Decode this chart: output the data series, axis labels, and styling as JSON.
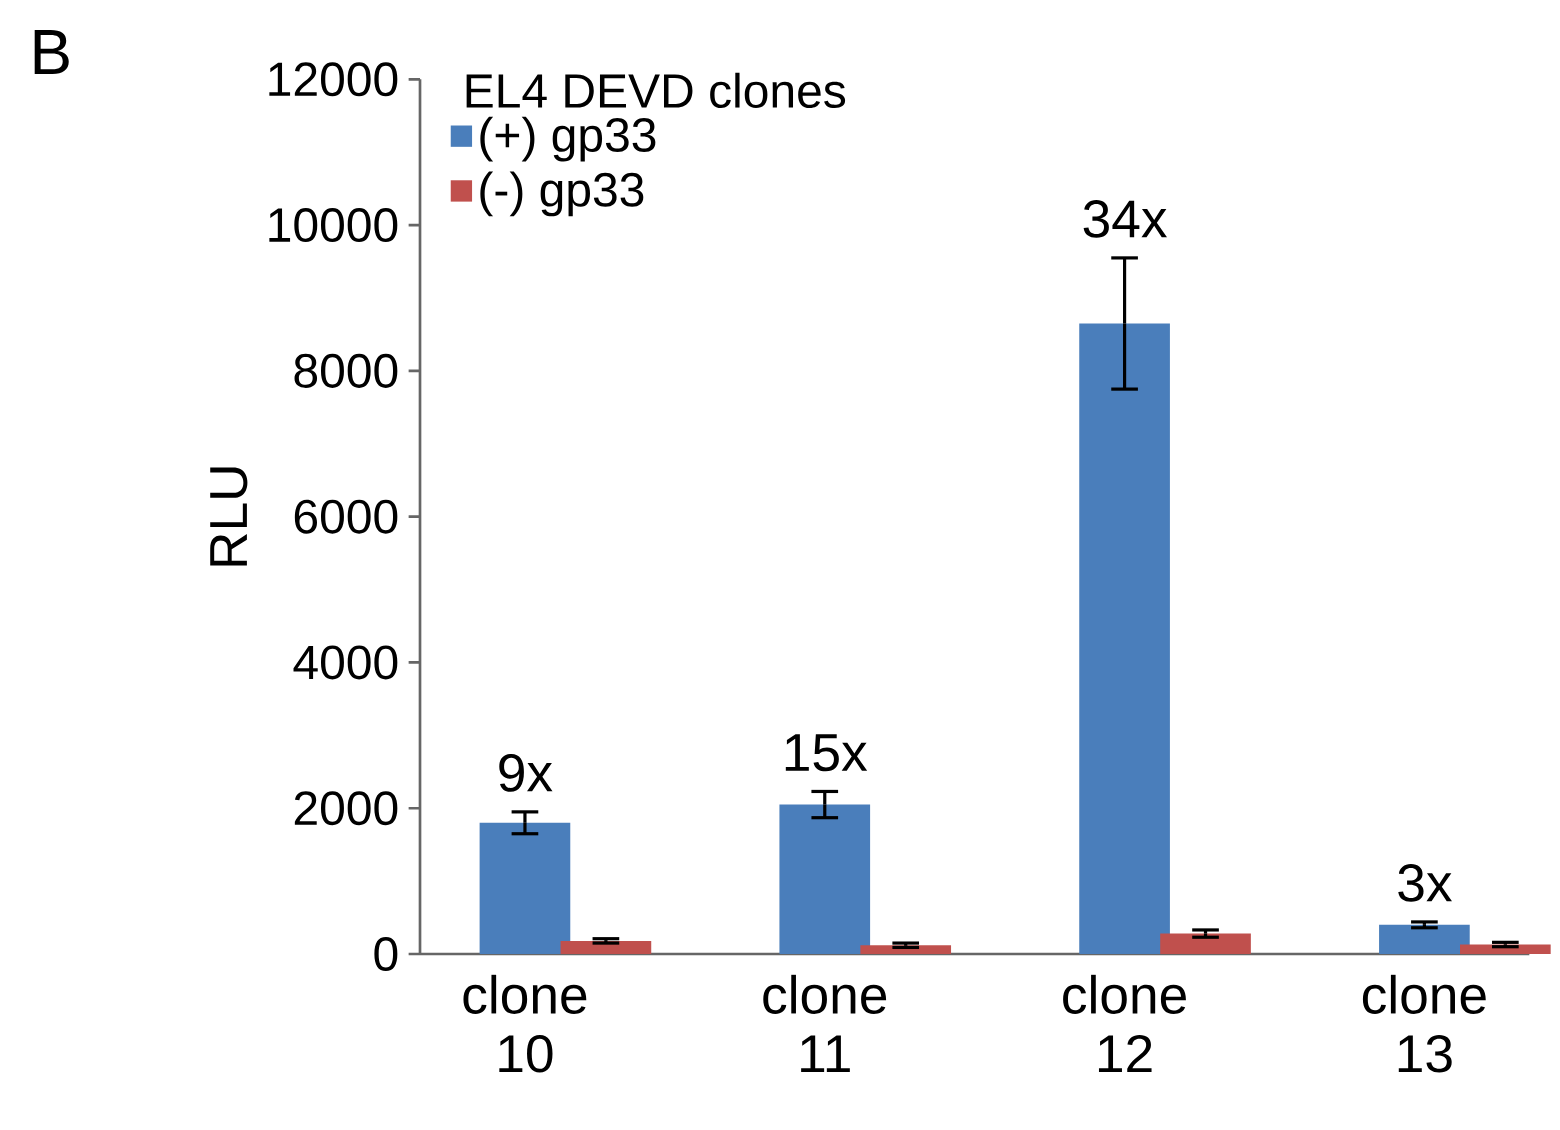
{
  "chart_data": {
    "type": "bar",
    "title": "EL4 DEVD clones",
    "ylabel": "RLU",
    "categories": [
      "clone 10",
      "clone 11",
      "clone 12",
      "clone 13"
    ],
    "series": [
      {
        "name": "(+) gp33",
        "color": "#4a7ebb",
        "values": [
          1800,
          2050,
          8650,
          400
        ],
        "errors": [
          150,
          180,
          900,
          40
        ]
      },
      {
        "name": "(-) gp33",
        "color": "#c0504d",
        "values": [
          180,
          120,
          280,
          130
        ],
        "errors": [
          30,
          30,
          50,
          30
        ]
      }
    ],
    "ylim": [
      0,
      12000
    ],
    "yticks": [
      0,
      2000,
      4000,
      6000,
      8000,
      10000,
      12000
    ],
    "legend": "top left",
    "annotations": [
      "B",
      "9x",
      "15x",
      "34x",
      "3x"
    ]
  }
}
